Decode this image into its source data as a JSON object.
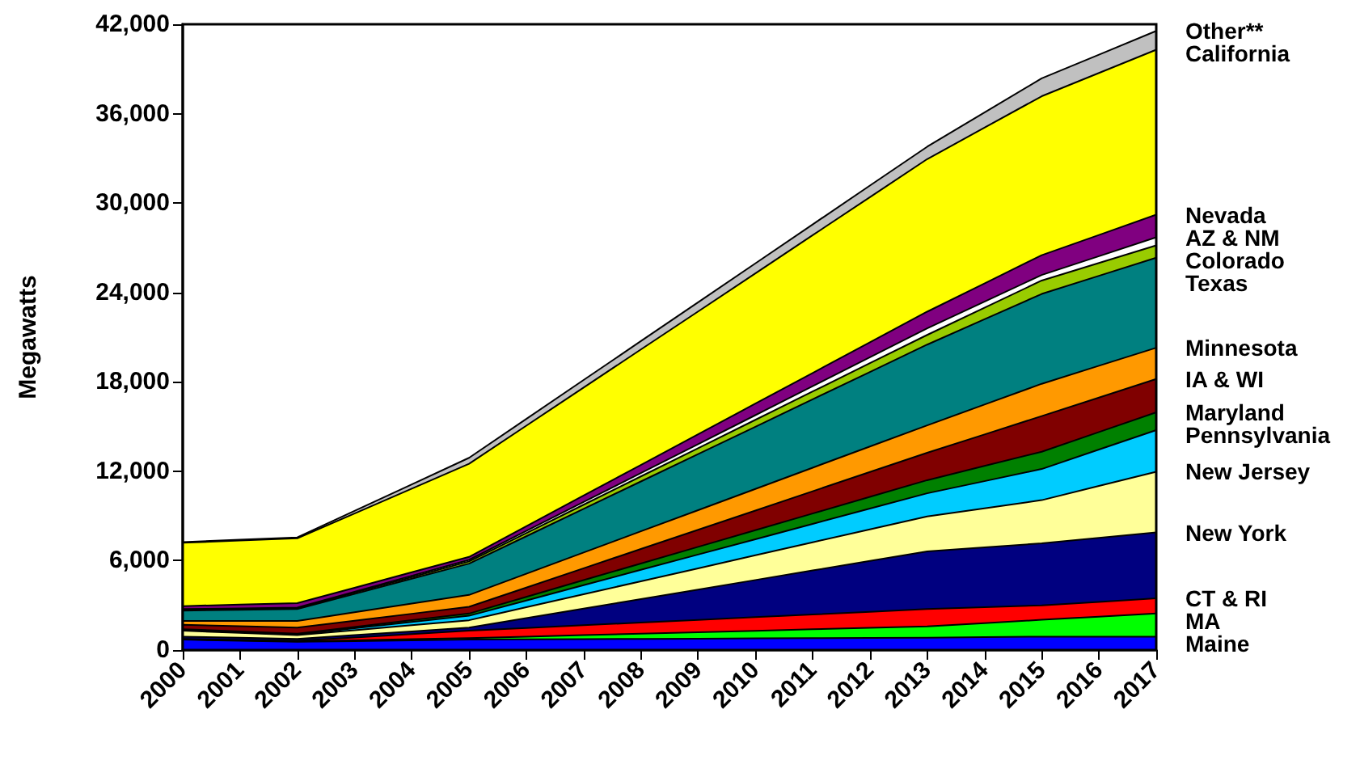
{
  "chart_data": {
    "type": "area",
    "stacked": true,
    "ylabel": "Megawatts",
    "categories": [
      "2000",
      "2001",
      "2002",
      "2003",
      "2004",
      "2005",
      "2006",
      "2007",
      "2008",
      "2009",
      "2010",
      "2011",
      "2012",
      "2013",
      "2014",
      "2015",
      "2016",
      "2017"
    ],
    "ylim": [
      0,
      42000
    ],
    "yticks": [
      {
        "value": 0,
        "label": "0"
      },
      {
        "value": 6000,
        "label": "6,000"
      },
      {
        "value": 12000,
        "label": "12,000"
      },
      {
        "value": 18000,
        "label": "18,000"
      },
      {
        "value": 24000,
        "label": "24,000"
      },
      {
        "value": 30000,
        "label": "30,000"
      },
      {
        "value": 36000,
        "label": "36,000"
      },
      {
        "value": 42000,
        "label": "42,000"
      }
    ],
    "grid": false,
    "legend": false,
    "marker": "none",
    "series": [
      {
        "name": "Maine",
        "color": "#0000ff",
        "values": [
          700,
          625,
          550,
          600,
          650,
          700,
          716,
          733,
          749,
          765,
          781,
          798,
          814,
          830,
          865,
          900,
          900,
          900
        ]
      },
      {
        "name": "MA",
        "color": "#00ff00",
        "values": [
          20,
          25,
          30,
          53,
          77,
          100,
          183,
          265,
          348,
          430,
          513,
          595,
          678,
          760,
          945,
          1130,
          1345,
          1560
        ]
      },
      {
        "name": "CT & RI",
        "color": "#ff0000",
        "values": [
          30,
          35,
          40,
          193,
          347,
          500,
          583,
          665,
          748,
          830,
          913,
          995,
          1078,
          1160,
          1065,
          970,
          990,
          1010
        ]
      },
      {
        "name": "New York",
        "color": "#000080",
        "values": [
          150,
          140,
          130,
          153,
          177,
          200,
          659,
          1118,
          1576,
          2035,
          2494,
          2953,
          3411,
          3870,
          4015,
          4160,
          4290,
          4420
        ]
      },
      {
        "name": "New Jersey",
        "color": "#ffff99",
        "values": [
          400,
          325,
          250,
          333,
          417,
          500,
          731,
          963,
          1194,
          1425,
          1656,
          1888,
          2119,
          2350,
          2625,
          2900,
          3490,
          4080
        ]
      },
      {
        "name": "Pennsylvania",
        "color": "#00ccff",
        "values": [
          50,
          50,
          50,
          133,
          217,
          300,
          456,
          613,
          769,
          925,
          1081,
          1238,
          1394,
          1550,
          1820,
          2090,
          2440,
          2790
        ]
      },
      {
        "name": "Maryland",
        "color": "#008000",
        "values": [
          50,
          50,
          50,
          83,
          117,
          150,
          241,
          333,
          424,
          515,
          606,
          698,
          789,
          880,
          1020,
          1160,
          1175,
          1190
        ]
      },
      {
        "name": "IA & WI",
        "color": "#800000",
        "values": [
          300,
          350,
          400,
          417,
          433,
          450,
          624,
          798,
          971,
          1145,
          1319,
          1493,
          1666,
          1840,
          2115,
          2390,
          2315,
          2240
        ]
      },
      {
        "name": "Minnesota",
        "color": "#ff9900",
        "values": [
          250,
          350,
          450,
          567,
          683,
          800,
          930,
          1060,
          1190,
          1320,
          1450,
          1580,
          1710,
          1840,
          2005,
          2170,
          2135,
          2100
        ]
      },
      {
        "name": "Texas",
        "color": "#008080",
        "values": [
          700,
          750,
          800,
          1233,
          1667,
          2100,
          2515,
          2930,
          3345,
          3760,
          4175,
          4590,
          5005,
          5420,
          5725,
          6030,
          6035,
          6040
        ]
      },
      {
        "name": "Colorado",
        "color": "#99cc00",
        "values": [
          50,
          50,
          50,
          83,
          117,
          150,
          213,
          275,
          338,
          400,
          463,
          525,
          588,
          650,
          775,
          900,
          865,
          830
        ]
      },
      {
        "name": "AZ & NM",
        "color": "#ffffff",
        "values": [
          50,
          50,
          50,
          67,
          83,
          100,
          143,
          185,
          228,
          270,
          313,
          355,
          398,
          440,
          405,
          370,
          455,
          540
        ]
      },
      {
        "name": "Nevada",
        "color": "#800080",
        "values": [
          200,
          250,
          300,
          267,
          233,
          200,
          315,
          430,
          545,
          660,
          775,
          890,
          1005,
          1120,
          1225,
          1330,
          1425,
          1520
        ]
      },
      {
        "name": "California",
        "color": "#ffff00",
        "values": [
          4250,
          4300,
          4350,
          4983,
          5617,
          6250,
          6749,
          7248,
          7746,
          8245,
          8744,
          9243,
          9741,
          10240,
          10455,
          10670,
          10870,
          11070
        ]
      },
      {
        "name": "Other**",
        "color": "#c0c0c0",
        "values": [
          50,
          55,
          60,
          173,
          287,
          400,
          454,
          508,
          561,
          615,
          669,
          723,
          776,
          830,
          1015,
          1200,
          1230,
          1260
        ]
      }
    ]
  }
}
